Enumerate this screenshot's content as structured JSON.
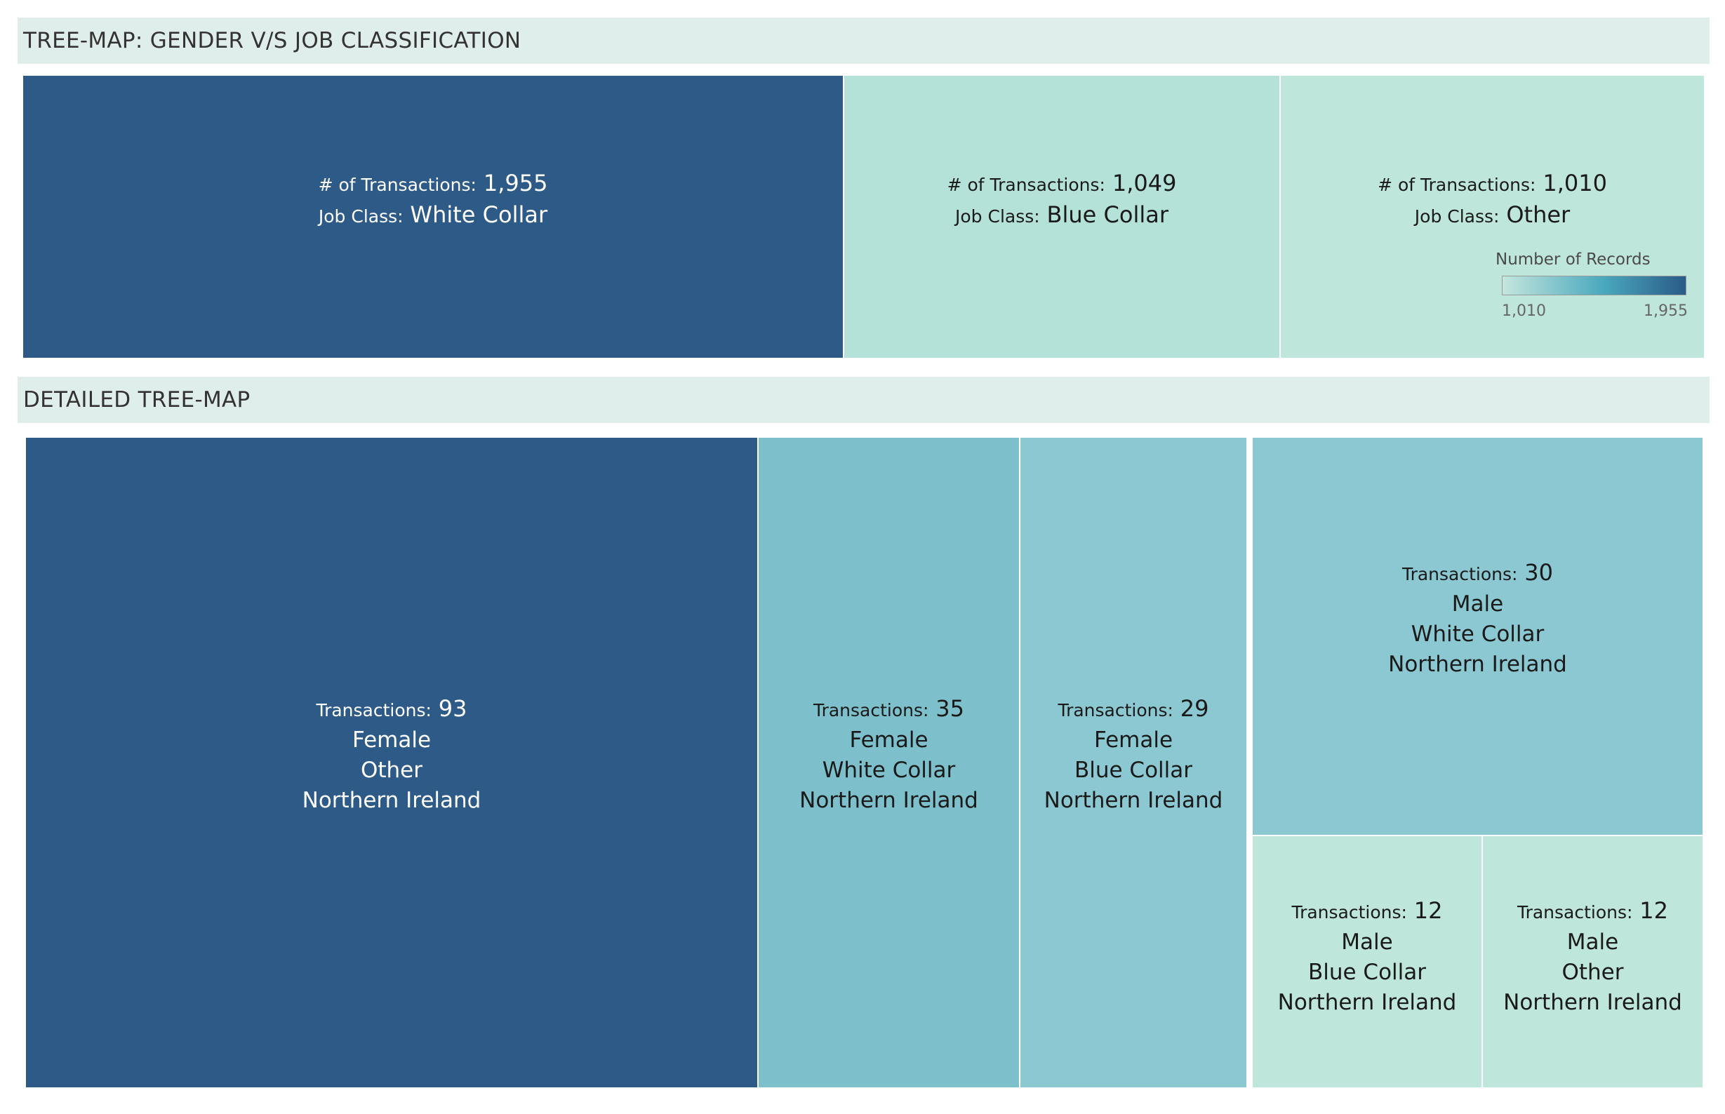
{
  "headers": {
    "top": "TREE-MAP: GENDER V/S JOB CLASSIFICATION",
    "detail": "DETAILED TREE-MAP"
  },
  "legend": {
    "title": "Number of Records",
    "min_label": "1,010",
    "max_label": "1,955"
  },
  "colors": {
    "dark": "#2d5a86",
    "mid": "#7dbfca",
    "light": "#8cc8d1",
    "pale": "#b5e2d8",
    "palest": "#bee6da",
    "header_bg": "#e0eeeb"
  },
  "chart_data": [
    {
      "type": "treemap",
      "title": "TREE-MAP: GENDER V/S JOB CLASSIFICATION",
      "metric_label": "# of Transactions:",
      "category_label": "Job Class:",
      "items": [
        {
          "job_class": "White Collar",
          "value": 1955,
          "value_label": "1,955",
          "color": "#2d5a86",
          "text": "dark"
        },
        {
          "job_class": "Blue Collar",
          "value": 1049,
          "value_label": "1,049",
          "color": "#b5e2d8",
          "text": "light"
        },
        {
          "job_class": "Other",
          "value": 1010,
          "value_label": "1,010",
          "color": "#bee6da",
          "text": "light"
        }
      ],
      "color_scale": {
        "title": "Number of Records",
        "min": 1010,
        "max": 1955
      }
    },
    {
      "type": "treemap",
      "title": "DETAILED TREE-MAP",
      "metric_label": "Transactions:",
      "items": [
        {
          "value": 93,
          "gender": "Female",
          "job_class": "Other",
          "region": "Northern Ireland",
          "color": "#2d5a86",
          "text": "dark"
        },
        {
          "value": 35,
          "gender": "Female",
          "job_class": "White Collar",
          "region": "Northern Ireland",
          "color": "#7dbfca",
          "text": "light"
        },
        {
          "value": 29,
          "gender": "Female",
          "job_class": "Blue Collar",
          "region": "Northern Ireland",
          "color": "#8cc8d1",
          "text": "light"
        },
        {
          "value": 30,
          "gender": "Male",
          "job_class": "White Collar",
          "region": "Northern Ireland",
          "color": "#8cc8d1",
          "text": "light"
        },
        {
          "value": 12,
          "gender": "Male",
          "job_class": "Blue Collar",
          "region": "Northern Ireland",
          "color": "#bee6da",
          "text": "light"
        },
        {
          "value": 12,
          "gender": "Male",
          "job_class": "Other",
          "region": "Northern Ireland",
          "color": "#bee6da",
          "text": "light"
        }
      ]
    }
  ]
}
